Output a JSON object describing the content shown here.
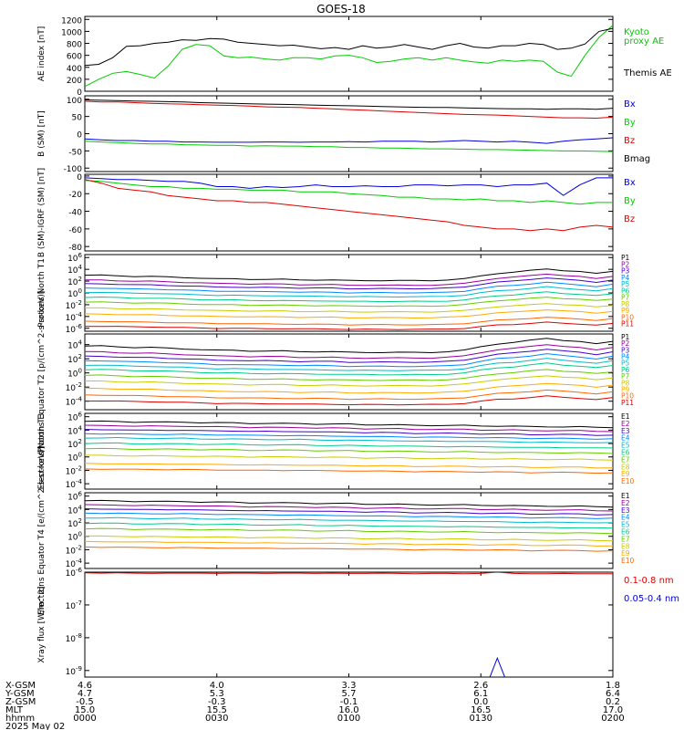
{
  "title": "GOES-18",
  "colors": {
    "black": "#000000",
    "blue": "#0000dd",
    "green": "#00cc00",
    "red": "#dd0000",
    "prot": [
      "#000000",
      "#9a009a",
      "#4400cc",
      "#0088ff",
      "#00bbcc",
      "#00cc88",
      "#66cc00",
      "#cccc00",
      "#ffaa00",
      "#ff6600",
      "#dd0000"
    ],
    "elec": [
      "#000000",
      "#9a009a",
      "#4400cc",
      "#0088ff",
      "#00bbcc",
      "#00cc88",
      "#66cc00",
      "#cccc00",
      "#ffaa00",
      "#ff6600",
      "#dd0000"
    ]
  },
  "x_axis": {
    "rows": [
      {
        "label": "X-GSM",
        "values": [
          "4.6",
          "4.0",
          "3.3",
          "2.6",
          "1.8"
        ]
      },
      {
        "label": "Y-GSM",
        "values": [
          "4.7",
          "5.3",
          "5.7",
          "6.1",
          "6.4"
        ]
      },
      {
        "label": "Z-GSM",
        "values": [
          "-0.5",
          "-0.3",
          "-0.1",
          "0.0",
          "0.2"
        ]
      },
      {
        "label": "MLT",
        "values": [
          "15.0",
          "15.5",
          "16.0",
          "16.5",
          "17.0"
        ]
      },
      {
        "label": "hhmm",
        "values": [
          "0000",
          "0030",
          "0100",
          "0130",
          "0200"
        ]
      }
    ],
    "date": "2025 May 02"
  },
  "chart_data": [
    {
      "type": "line",
      "ylabel": "AE index [nT]",
      "yticks": [
        "1200",
        "1000",
        "800",
        "600",
        "400",
        "200",
        "0"
      ],
      "ylim": [
        0,
        1250
      ],
      "series": [
        {
          "name": "Kyoto proxy AE",
          "color": "#00cc00",
          "values": [
            80,
            200,
            300,
            330,
            280,
            220,
            420,
            700,
            780,
            760,
            590,
            560,
            570,
            540,
            520,
            560,
            560,
            540,
            590,
            600,
            560,
            480,
            500,
            540,
            560,
            520,
            560,
            520,
            490,
            470,
            520,
            500,
            520,
            500,
            320,
            250,
            600,
            900,
            1100
          ]
        },
        {
          "name": "Themis AE",
          "color": "#000000",
          "values": [
            430,
            450,
            560,
            750,
            760,
            800,
            820,
            860,
            850,
            880,
            870,
            820,
            800,
            780,
            760,
            770,
            740,
            710,
            730,
            700,
            760,
            720,
            740,
            780,
            740,
            700,
            760,
            800,
            740,
            720,
            760,
            760,
            800,
            780,
            700,
            720,
            790,
            1000,
            1050
          ]
        }
      ]
    },
    {
      "type": "line",
      "ylabel": "B (SM) [nT]",
      "yticks": [
        "100",
        "50",
        "0",
        "-50",
        "-100"
      ],
      "ylim": [
        -110,
        110
      ],
      "series": [
        {
          "name": "Bx",
          "color": "#0000dd",
          "values": [
            -15,
            -18,
            -20,
            -20,
            -22,
            -22,
            -24,
            -24,
            -25,
            -25,
            -25,
            -24,
            -24,
            -25,
            -24,
            -24,
            -23,
            -24,
            -22,
            -22,
            -22,
            -24,
            -22,
            -20,
            -22,
            -24,
            -22,
            -25,
            -28,
            -22,
            -18,
            -15,
            -12
          ]
        },
        {
          "name": "By",
          "color": "#00cc00",
          "values": [
            -22,
            -24,
            -26,
            -28,
            -30,
            -30,
            -32,
            -33,
            -34,
            -34,
            -36,
            -35,
            -36,
            -36,
            -38,
            -38,
            -40,
            -40,
            -42,
            -42,
            -43,
            -44,
            -44,
            -45,
            -46,
            -46,
            -47,
            -48,
            -49,
            -50,
            -50,
            -51,
            -52
          ]
        },
        {
          "name": "Bz",
          "color": "#dd0000",
          "values": [
            94,
            92,
            92,
            90,
            88,
            87,
            86,
            84,
            83,
            82,
            80,
            78,
            77,
            76,
            74,
            72,
            70,
            68,
            66,
            64,
            62,
            60,
            58,
            56,
            55,
            54,
            52,
            50,
            48,
            46,
            46,
            45,
            48
          ]
        },
        {
          "name": "Bmag",
          "color": "#000000",
          "values": [
            98,
            97,
            96,
            95,
            94,
            93,
            92,
            90,
            89,
            88,
            87,
            86,
            85,
            84,
            83,
            82,
            81,
            80,
            79,
            78,
            77,
            76,
            76,
            75,
            74,
            73,
            72,
            72,
            71,
            72,
            72,
            71,
            74
          ]
        }
      ]
    },
    {
      "type": "line",
      "ylabel": "B (SM)-IGRF (SM) [nT]",
      "yticks": [
        "0",
        "-20",
        "-40",
        "-60",
        "-80"
      ],
      "ylim": [
        -85,
        2
      ],
      "series": [
        {
          "name": "Bx",
          "color": "#0000dd",
          "values": [
            -2,
            -3,
            -4,
            -4,
            -5,
            -6,
            -6,
            -8,
            -12,
            -12,
            -14,
            -12,
            -13,
            -12,
            -10,
            -12,
            -12,
            -11,
            -12,
            -12,
            -10,
            -10,
            -11,
            -10,
            -10,
            -12,
            -10,
            -10,
            -8,
            -22,
            -10,
            -2,
            -2
          ]
        },
        {
          "name": "By",
          "color": "#00cc00",
          "values": [
            -5,
            -6,
            -8,
            -10,
            -12,
            -12,
            -14,
            -14,
            -15,
            -15,
            -16,
            -16,
            -16,
            -18,
            -18,
            -18,
            -20,
            -21,
            -22,
            -24,
            -24,
            -26,
            -26,
            -27,
            -26,
            -28,
            -28,
            -30,
            -28,
            -30,
            -32,
            -30,
            -30
          ]
        },
        {
          "name": "Bz",
          "color": "#dd0000",
          "values": [
            -4,
            -8,
            -14,
            -16,
            -18,
            -22,
            -24,
            -26,
            -28,
            -28,
            -30,
            -30,
            -32,
            -34,
            -36,
            -38,
            -40,
            -42,
            -44,
            -46,
            -48,
            -50,
            -52,
            -56,
            -58,
            -60,
            -60,
            -62,
            -60,
            -62,
            -58,
            -56,
            -58
          ]
        }
      ]
    },
    {
      "type": "line",
      "ylabel": "Protons North T1",
      "log": true,
      "yticks": [
        "10^6",
        "10^4",
        "10^2",
        "10^0",
        "10^-2",
        "10^-4",
        "10^-6"
      ],
      "ylim": [
        -6.5,
        6.5
      ],
      "channels": [
        "P1",
        "P2",
        "P3",
        "P4",
        "P5",
        "P6",
        "P7",
        "P8",
        "P9",
        "P10",
        "P11"
      ],
      "base": [
        2.4,
        1.6,
        1.0,
        0.3,
        -0.4,
        -1.2,
        -2.0,
        -3.0,
        -4.0,
        -5.2,
        -6.0
      ],
      "profile": [
        0.6,
        0.6,
        0.5,
        0.4,
        0.4,
        0.3,
        0.2,
        0.1,
        0.0,
        0.0,
        -0.1,
        -0.1,
        -0.1,
        -0.2,
        -0.2,
        -0.2,
        -0.3,
        -0.3,
        -0.3,
        -0.3,
        -0.3,
        -0.3,
        -0.2,
        0.0,
        0.5,
        0.9,
        1.1,
        1.4,
        1.7,
        1.4,
        1.2,
        0.9,
        1.3
      ]
    },
    {
      "type": "line",
      "ylabel": "Protons Equator T2 [p/(cm^2-s-sr-keV)]",
      "log": true,
      "yticks": [
        "10^4",
        "10^2",
        "10^0",
        "10^-2",
        "10^-4"
      ],
      "ylim": [
        -5.2,
        5.5
      ],
      "channels": [
        "P1",
        "P2",
        "P3",
        "P4",
        "P5",
        "P6",
        "P7",
        "P8",
        "P9",
        "P10",
        "P11"
      ],
      "base": [
        3.2,
        2.4,
        1.8,
        1.2,
        0.6,
        0.0,
        -0.8,
        -1.6,
        -2.6,
        -3.5,
        -4.3
      ],
      "profile": [
        0.6,
        0.6,
        0.5,
        0.4,
        0.4,
        0.3,
        0.2,
        0.1,
        0.0,
        0.0,
        -0.1,
        -0.1,
        -0.1,
        -0.2,
        -0.2,
        -0.2,
        -0.3,
        -0.3,
        -0.3,
        -0.3,
        -0.3,
        -0.3,
        -0.2,
        0.0,
        0.5,
        0.9,
        1.1,
        1.4,
        1.7,
        1.4,
        1.2,
        0.9,
        1.3
      ]
    },
    {
      "type": "line",
      "ylabel": "Electrons North T3",
      "log": true,
      "yticks": [
        "10^6",
        "10^4",
        "10^2",
        "10^0",
        "10^-2",
        "10^-4"
      ],
      "ylim": [
        -4.8,
        6.5
      ],
      "channels": [
        "E1",
        "E2",
        "E3",
        "E4",
        "E5",
        "E6",
        "E7",
        "E8",
        "E9",
        "E10"
      ],
      "base": [
        5.0,
        4.4,
        3.8,
        3.2,
        2.6,
        1.8,
        1.0,
        0.0,
        -1.2,
        -2.0
      ],
      "profile": [
        0.3,
        0.3,
        0.3,
        0.2,
        0.2,
        0.2,
        0.2,
        0.1,
        0.1,
        0.1,
        0.0,
        0.0,
        0.0,
        0.0,
        -0.1,
        -0.1,
        -0.1,
        -0.2,
        -0.2,
        -0.2,
        -0.3,
        -0.3,
        -0.3,
        -0.3,
        -0.4,
        -0.4,
        -0.4,
        -0.5,
        -0.5,
        -0.5,
        -0.5,
        -0.6,
        -0.6
      ]
    },
    {
      "type": "line",
      "ylabel": "Electrons Equator T4 [e/(cm^2-s-sr-keV)]",
      "log": true,
      "yticks": [
        "10^6",
        "10^4",
        "10^2",
        "10^0",
        "10^-2",
        "10^-4"
      ],
      "ylim": [
        -4.8,
        6.5
      ],
      "channels": [
        "E1",
        "E2",
        "E3",
        "E4",
        "E5",
        "E6",
        "E7",
        "E8",
        "E9",
        "E10"
      ],
      "base": [
        5.0,
        4.4,
        3.8,
        3.2,
        2.5,
        1.7,
        0.9,
        -0.2,
        -1.0,
        -1.8
      ],
      "profile": [
        0.3,
        0.3,
        0.3,
        0.2,
        0.2,
        0.2,
        0.2,
        0.1,
        0.1,
        0.1,
        0.0,
        0.0,
        0.0,
        0.0,
        -0.1,
        -0.1,
        -0.1,
        -0.2,
        -0.2,
        -0.2,
        -0.3,
        -0.3,
        -0.3,
        -0.3,
        -0.4,
        -0.4,
        -0.4,
        -0.5,
        -0.5,
        -0.5,
        -0.5,
        -0.6,
        -0.6
      ]
    },
    {
      "type": "line",
      "ylabel": "Xray flux [W/m^2]",
      "log": true,
      "yticks": [
        "10^-6",
        "10^-7",
        "10^-8",
        "10^-9"
      ],
      "ylim": [
        -9.2,
        -6.0
      ],
      "series": [
        {
          "name": "0.1-0.8 nm",
          "color": "#dd0000",
          "values": [
            -6.02,
            -6.03,
            -6.02,
            -6.03,
            -6.04,
            -6.03,
            -6.03,
            -6.03,
            -6.04,
            -6.03,
            -6.03,
            -6.04,
            -6.03,
            -6.03,
            -6.04,
            -6.03,
            -6.04,
            -6.04,
            -6.03,
            -6.04,
            -6.05,
            -6.04,
            -6.04,
            -6.05,
            -6.04,
            -6.0,
            -6.04,
            -6.05,
            -6.05,
            -6.04,
            -6.05,
            -6.05,
            -6.05
          ]
        },
        {
          "name": "0.05-0.4 nm",
          "color": "#0000dd",
          "values": [
            -9.9,
            -9.9,
            -9.9,
            -9.9,
            -9.9,
            -9.9,
            -9.9,
            -9.9,
            -9.9,
            -9.9,
            -9.9,
            -9.9,
            -9.9,
            -9.9,
            -9.9,
            -9.9,
            -9.9,
            -9.9,
            -9.9,
            -9.9,
            -9.9,
            -9.9,
            -9.9,
            -9.9,
            -9.9,
            -8.62,
            -9.9,
            -9.9,
            -9.9,
            -9.9,
            -9.9,
            -9.9,
            -9.9
          ]
        }
      ]
    }
  ],
  "legends": [
    [
      {
        "text": "Kyoto",
        "color": "#00cc00"
      },
      {
        "text": "proxy AE",
        "color": "#00cc00"
      },
      {
        "text": "Themis AE",
        "color": "#000000"
      }
    ],
    [
      {
        "text": "Bx",
        "color": "#0000dd"
      },
      {
        "text": "By",
        "color": "#00cc00"
      },
      {
        "text": "Bz",
        "color": "#dd0000"
      },
      {
        "text": "Bmag",
        "color": "#000000"
      }
    ],
    [
      {
        "text": "Bx",
        "color": "#0000dd"
      },
      {
        "text": "By",
        "color": "#00cc00"
      },
      {
        "text": "Bz",
        "color": "#dd0000"
      }
    ],
    [],
    [],
    [],
    [],
    [
      {
        "text": "0.1-0.8 nm",
        "color": "#dd0000"
      },
      {
        "text": "0.05-0.4 nm",
        "color": "#0000dd"
      }
    ]
  ]
}
